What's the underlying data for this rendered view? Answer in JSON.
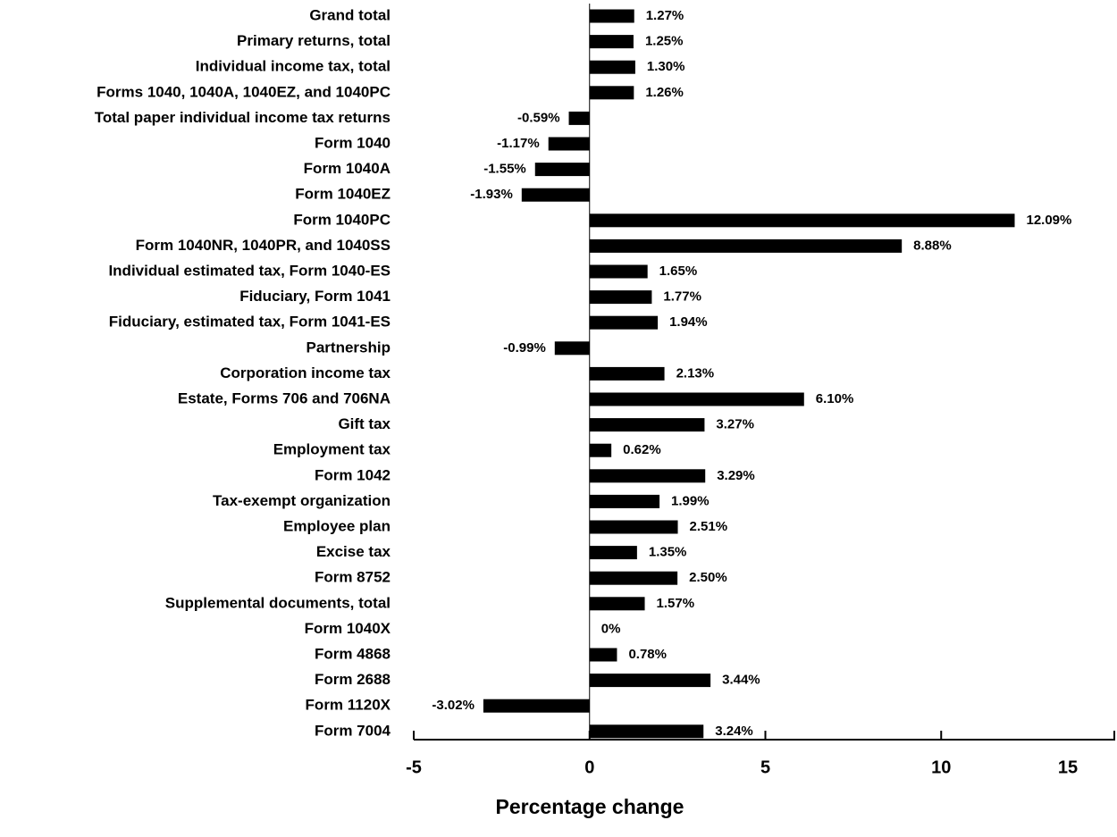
{
  "chart_data": {
    "type": "bar",
    "orientation": "horizontal",
    "x_label": "Percentage change",
    "categories": [
      "Grand total",
      "Primary returns, total",
      "Individual income tax, total",
      "Forms 1040, 1040A, 1040EZ, and 1040PC",
      "Total paper individual income tax returns",
      "Form 1040",
      "Form 1040A",
      "Form 1040EZ",
      "Form 1040PC",
      "Form 1040NR, 1040PR, and 1040SS",
      "Individual estimated tax, Form 1040-ES",
      "Fiduciary, Form 1041",
      "Fiduciary, estimated tax, Form 1041-ES",
      "Partnership",
      "Corporation income tax",
      "Estate, Forms 706 and 706NA",
      "Gift tax",
      "Employment tax",
      "Form 1042",
      "Tax-exempt organization",
      "Employee plan",
      "Excise tax",
      "Form 8752",
      "Supplemental documents, total",
      "Form 1040X",
      "Form 4868",
      "Form 2688",
      "Form 1120X",
      "Form 7004"
    ],
    "values": [
      1.27,
      1.25,
      1.3,
      1.26,
      -0.59,
      -1.17,
      -1.55,
      -1.93,
      12.09,
      8.88,
      1.65,
      1.77,
      1.94,
      -0.99,
      2.13,
      6.1,
      3.27,
      0.62,
      3.29,
      1.99,
      2.51,
      1.35,
      2.5,
      1.57,
      0,
      0.78,
      3.44,
      -3.02,
      3.24
    ],
    "value_labels": [
      "1.27%",
      "1.25%",
      "1.30%",
      "1.26%",
      "-0.59%",
      "-1.17%",
      "-1.55%",
      "-1.93%",
      "12.09%",
      "8.88%",
      "1.65%",
      "1.77%",
      "1.94%",
      "-0.99%",
      "2.13%",
      "6.10%",
      "3.27%",
      "0.62%",
      "3.29%",
      "1.99%",
      "2.51%",
      "1.35%",
      "2.50%",
      "1.57%",
      "0%",
      "0.78%",
      "3.44%",
      "-3.02%",
      "3.24%"
    ],
    "color": "#000000",
    "xlim": [
      -5,
      15
    ],
    "xticks": [
      -5,
      0,
      5,
      10,
      15
    ],
    "grid": false
  }
}
